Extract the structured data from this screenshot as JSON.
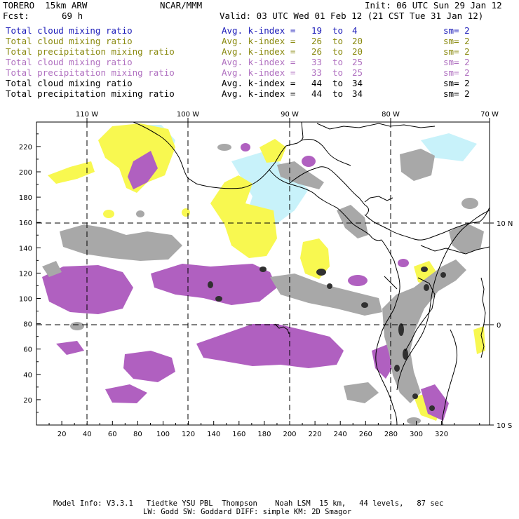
{
  "header": {
    "model": "TORERO  15km ARW",
    "center": "NCAR/MMM",
    "init": "Init: 06 UTC Sun 29 Jan 12",
    "fcst_label": "Fcst:",
    "fcst_value": "69 h",
    "valid": "Valid: 03 UTC Wed 01 Feb 12 (21 CST Tue 31 Jan 12)"
  },
  "legend": [
    {
      "field": "Total cloud mixing ratio",
      "k_index": "Avg. k-index =",
      "from": "19",
      "to_word": "to",
      "to": "4",
      "sm": "sm= 2",
      "color": "#1a1ab8"
    },
    {
      "field": "Total cloud mixing ratio",
      "k_index": "Avg. k-index =",
      "from": "26",
      "to_word": "to",
      "to": "20",
      "sm": "sm= 2",
      "color": "#8a8a10"
    },
    {
      "field": "Total precipitation mixing ratio",
      "k_index": "Avg. k-index =",
      "from": "26",
      "to_word": "to",
      "to": "20",
      "sm": "sm= 2",
      "color": "#8a8a10"
    },
    {
      "field": "Total cloud mixing ratio",
      "k_index": "Avg. k-index =",
      "from": "33",
      "to_word": "to",
      "to": "25",
      "sm": "sm= 2",
      "color": "#b070c0"
    },
    {
      "field": "Total precipitation mixing ratio",
      "k_index": "Avg. k-index =",
      "from": "33",
      "to_word": "to",
      "to": "25",
      "sm": "sm= 2",
      "color": "#b070c0"
    },
    {
      "field": "Total cloud mixing ratio",
      "k_index": "Avg. k-index =",
      "from": "44",
      "to_word": "to",
      "to": "34",
      "sm": "sm= 2",
      "color": "#000000"
    },
    {
      "field": "Total precipitation mixing ratio",
      "k_index": "Avg. k-index =",
      "from": "44",
      "to_word": "to",
      "to": "34",
      "sm": "sm= 2",
      "color": "#000000"
    }
  ],
  "map": {
    "top_lon_labels": [
      "110 W",
      "100 W",
      "90 W",
      "80 W",
      "70 W"
    ],
    "right_lat_labels": [
      "10 N",
      "0",
      "10 S"
    ],
    "bottom_ticks": [
      "20",
      "40",
      "60",
      "80",
      "100",
      "120",
      "140",
      "160",
      "180",
      "200",
      "220",
      "240",
      "260",
      "280",
      "300",
      "320"
    ],
    "left_ticks": [
      "20",
      "40",
      "60",
      "80",
      "100",
      "120",
      "140",
      "160",
      "180",
      "200",
      "220"
    ],
    "colors": {
      "cyan": "#c8f2fa",
      "yellow": "#f8f850",
      "purple": "#b060c0",
      "gray": "#a8a8a8",
      "dark": "#303030",
      "coast": "#000000"
    }
  },
  "footer": {
    "line1": "Model Info: V3.3.1   Tiedtke YSU PBL  Thompson    Noah LSM  15 km,   44 levels,   87 sec",
    "line2": "LW: Godd SW: Goddard DIFF: simple KM: 2D Smagor"
  }
}
